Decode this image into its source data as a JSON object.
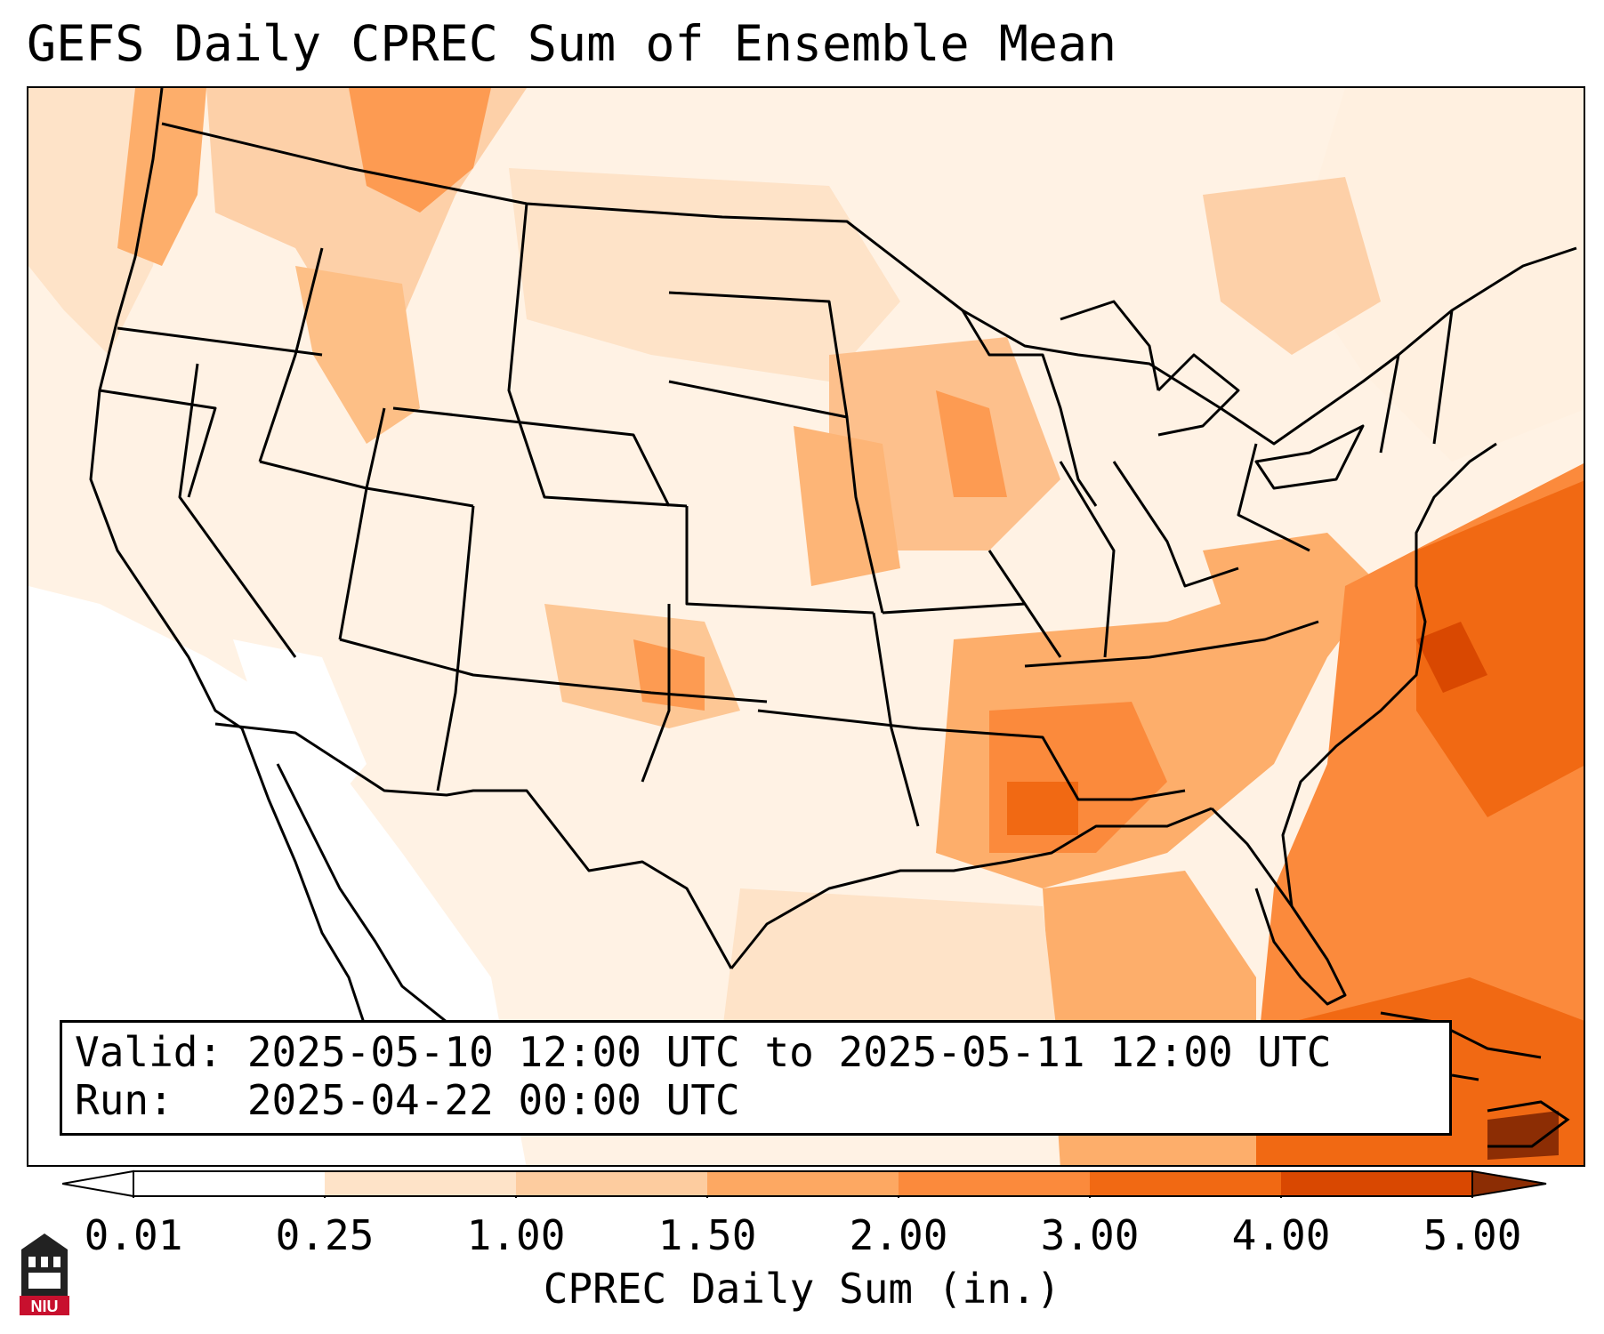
{
  "title": "GEFS Daily CPREC Sum of Ensemble Mean",
  "info": {
    "valid_line": "Valid: 2025-05-10 12:00 UTC to 2025-05-11 12:00 UTC",
    "run_line": "Run:   2025-04-22 00:00 UTC"
  },
  "colorbar": {
    "label": "CPREC Daily Sum (in.)",
    "ticks": [
      "0.01",
      "0.25",
      "1.00",
      "1.50",
      "2.00",
      "3.00",
      "4.00",
      "5.00"
    ],
    "colors": [
      "#ffffff",
      "#fee3c8",
      "#fdcc9f",
      "#fda862",
      "#fb8a3c",
      "#f16913",
      "#d94801",
      "#8c2d04"
    ]
  },
  "logo": {
    "text": "NIU",
    "color": "#c8102e"
  }
}
